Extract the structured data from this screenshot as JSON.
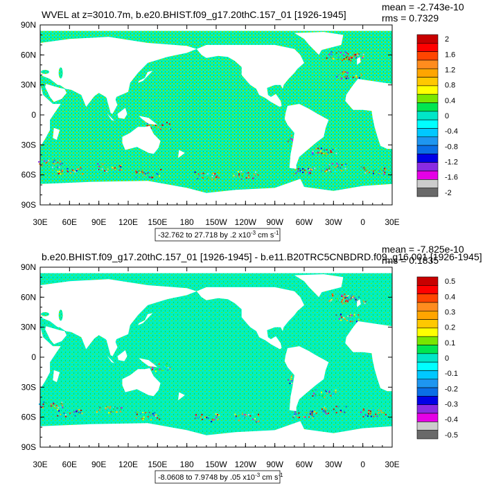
{
  "colors": {
    "palette": [
      "#696969",
      "#cccccc",
      "#e600e6",
      "#8a2be2",
      "#0000e6",
      "#0a6ee6",
      "#1e96f0",
      "#00c8ff",
      "#00ffff",
      "#00e6c8",
      "#00e650",
      "#78e600",
      "#ffff00",
      "#ffc800",
      "#ffa500",
      "#ff8c1e",
      "#ff4500",
      "#ff0000",
      "#c80000"
    ],
    "ocean_base": "#00f0c0",
    "ocean_speckle": "#78e600",
    "land": "#ffffff",
    "frame": "#000000"
  },
  "chart_data": [
    {
      "type": "heatmap",
      "title": "WVEL at z=3010.7m, b.e20.BHIST.f09_g17.20thC.157_01 [1926-1945]",
      "stats": {
        "mean": "mean = -2.743e-10",
        "rms": "rms = 0.7329"
      },
      "xlabel": "",
      "ylabel": "",
      "x_ticks": [
        "30E",
        "60E",
        "90E",
        "120E",
        "150E",
        "180",
        "150W",
        "120W",
        "90W",
        "60W",
        "30W",
        "0",
        "30E"
      ],
      "y_ticks": [
        "90N",
        "60N",
        "30N",
        "0",
        "30S",
        "60S",
        "90S"
      ],
      "colorbar_labels": [
        "2",
        "1.6",
        "1.2",
        "0.8",
        "0.4",
        "0",
        "-0.4",
        "-0.8",
        "-1.2",
        "-1.6",
        "-2"
      ],
      "range_info": {
        "text": "-32.762 to 27.718 by .2 x10",
        "exp": "-3",
        "units": " cm s",
        "uexp": "-1"
      },
      "lon_range": [
        30,
        390
      ],
      "lat_range": [
        -90,
        90
      ]
    },
    {
      "type": "heatmap",
      "title": "b.e20.BHIST.f09_g17.20thC.157_01 [1926-1945] - b.e11.B20TRC5CNBDRD.f09_g16.001 [1926-1945]",
      "stats": {
        "mean": "mean = -7.825e-10",
        "rms": "rms = 0.1835"
      },
      "xlabel": "",
      "ylabel": "",
      "x_ticks": [
        "30E",
        "60E",
        "90E",
        "120E",
        "150E",
        "180",
        "150W",
        "120W",
        "90W",
        "60W",
        "30W",
        "0",
        "30E"
      ],
      "y_ticks": [
        "90N",
        "60N",
        "30N",
        "0",
        "30S",
        "60S",
        "90S"
      ],
      "colorbar_labels": [
        "0.5",
        "0.4",
        "0.3",
        "0.2",
        "0.1",
        "0",
        "-0.1",
        "-0.2",
        "-0.3",
        "-0.4",
        "-0.5"
      ],
      "range_info": {
        "text": "-8.0608 to 7.9748 by .05 x10",
        "exp": "-3",
        "units": " cm s",
        "uexp": "-1"
      },
      "lon_range": [
        30,
        390
      ],
      "lat_range": [
        -90,
        90
      ]
    }
  ]
}
